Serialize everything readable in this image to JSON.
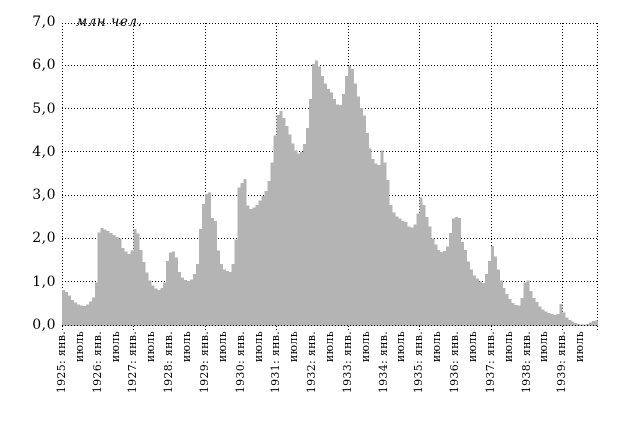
{
  "chart_data": {
    "type": "bar",
    "title": "",
    "unit_label": "млн чел.",
    "ylim": [
      0,
      7
    ],
    "y_tick_labels": [
      "0,0",
      "1,0",
      "2,0",
      "3,0",
      "4,0",
      "5,0",
      "6,0",
      "7,0"
    ],
    "x_tick_labels": [
      "1925: янв.",
      "июль",
      "1926: янв.",
      "июль",
      "1927: янв.",
      "июль",
      "1928: янв.",
      "июль",
      "1929: янв.",
      "июль",
      "1930: янв.",
      "июль",
      "1931: янв.",
      "июль",
      "1932: янв.",
      "июль",
      "1933: янв.",
      "июль",
      "1934: янв.",
      "июль",
      "1935: янв.",
      "июль",
      "1936: янв.",
      "июль",
      "1937: янв.",
      "июль",
      "1938: янв.",
      "июль",
      "1939: янв.",
      "июль"
    ],
    "x_start": "1925: янв.",
    "x_step": "1 месяц",
    "x_gridline_months": [
      0,
      24,
      48,
      72,
      96,
      120,
      144,
      168,
      180
    ],
    "grid": "dotted",
    "legend": "none",
    "bar_color": "#b4b4b4",
    "axis_color": "#000000",
    "values": [
      0.83,
      0.78,
      0.7,
      0.6,
      0.54,
      0.5,
      0.47,
      0.46,
      0.5,
      0.57,
      0.66,
      1.0,
      2.16,
      2.26,
      2.23,
      2.2,
      2.15,
      2.1,
      2.06,
      2.02,
      1.8,
      1.72,
      1.66,
      1.74,
      2.24,
      2.14,
      1.76,
      1.48,
      1.24,
      1.05,
      0.93,
      0.87,
      0.83,
      0.88,
      1.0,
      1.5,
      1.7,
      1.72,
      1.58,
      1.25,
      1.12,
      1.06,
      1.04,
      1.08,
      1.2,
      1.43,
      2.24,
      2.82,
      3.05,
      3.08,
      2.5,
      2.43,
      1.74,
      1.43,
      1.3,
      1.27,
      1.25,
      1.43,
      2.0,
      3.2,
      3.3,
      3.4,
      2.78,
      2.7,
      2.74,
      2.8,
      2.9,
      3.0,
      3.12,
      3.35,
      3.78,
      4.4,
      4.88,
      4.97,
      4.8,
      4.62,
      4.42,
      4.22,
      4.05,
      3.98,
      4.02,
      4.2,
      4.58,
      5.25,
      6.05,
      6.13,
      6.0,
      5.78,
      5.6,
      5.48,
      5.39,
      5.25,
      5.12,
      5.1,
      5.36,
      5.78,
      6.01,
      5.94,
      5.6,
      5.3,
      5.04,
      4.86,
      4.46,
      4.1,
      3.86,
      3.76,
      3.72,
      4.06,
      3.78,
      3.37,
      2.8,
      2.62,
      2.53,
      2.48,
      2.43,
      2.4,
      2.3,
      2.27,
      2.35,
      2.6,
      2.97,
      2.8,
      2.52,
      2.3,
      2.02,
      1.88,
      1.76,
      1.71,
      1.73,
      1.84,
      2.15,
      2.48,
      2.52,
      2.5,
      1.94,
      1.76,
      1.49,
      1.31,
      1.17,
      1.1,
      1.03,
      0.99,
      1.2,
      1.5,
      1.85,
      1.6,
      1.3,
      1.05,
      0.88,
      0.74,
      0.62,
      0.53,
      0.49,
      0.47,
      0.65,
      1.0,
      1.05,
      0.81,
      0.65,
      0.55,
      0.45,
      0.38,
      0.33,
      0.3,
      0.28,
      0.26,
      0.28,
      0.51,
      0.31,
      0.2,
      0.14,
      0.1,
      0.07,
      0.05,
      0.04,
      0.04,
      0.05,
      0.08,
      0.11,
      0.13
    ]
  }
}
